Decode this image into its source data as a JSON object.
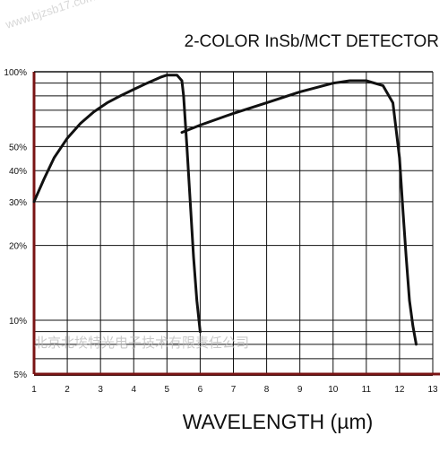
{
  "watermark_top": "www.bjzsb17.com",
  "watermark_bottom": "北京北埃特光电子技术有限责任公司",
  "colors": {
    "curve": "#111111",
    "grid": "#111111",
    "frame": "#7a1414",
    "watermark": "#b8b8b8",
    "background": "#ffffff"
  },
  "chart_data": {
    "type": "line",
    "title": "2-COLOR InSb/MCT DETECTOR",
    "xlabel": "WAVELENGTH (µm)",
    "ylabel": "",
    "xlim": [
      1,
      13
    ],
    "ylim": [
      5,
      100
    ],
    "yscale": "log",
    "grid": true,
    "x_ticks": [
      1,
      2,
      3,
      4,
      5,
      6,
      7,
      8,
      9,
      10,
      11,
      12,
      13
    ],
    "x_tick_labels": [
      "1",
      "2",
      "3",
      "4",
      "5",
      "6",
      "7",
      "8",
      "9",
      "10",
      "11",
      "12",
      "13"
    ],
    "y_ticks": [
      5,
      10,
      20,
      30,
      40,
      50,
      100
    ],
    "y_tick_labels": [
      "5%",
      "10%",
      "20%",
      "30%",
      "40%",
      "50%",
      "100%"
    ],
    "series": [
      {
        "name": "",
        "x": [
          1.0,
          1.3,
          1.6,
          2.0,
          2.4,
          2.8,
          3.2,
          3.6,
          4.0,
          4.4,
          4.8,
          5.0,
          5.3,
          5.45,
          5.5,
          5.6,
          5.7,
          5.8,
          5.9,
          6.0
        ],
        "y": [
          30,
          37,
          45,
          54,
          62,
          69,
          75,
          80,
          85,
          90,
          95,
          97,
          97,
          92,
          80,
          50,
          30,
          18,
          12,
          9
        ]
      },
      {
        "name": "",
        "x": [
          5.45,
          6.0,
          7.0,
          8.0,
          9.0,
          10.0,
          10.5,
          11.0,
          11.5,
          11.8,
          12.0,
          12.1,
          12.2,
          12.3,
          12.4,
          12.5
        ],
        "y": [
          57,
          61,
          68,
          75,
          83,
          90,
          92,
          92,
          88,
          75,
          45,
          28,
          18,
          12,
          9.5,
          8
        ]
      }
    ]
  }
}
